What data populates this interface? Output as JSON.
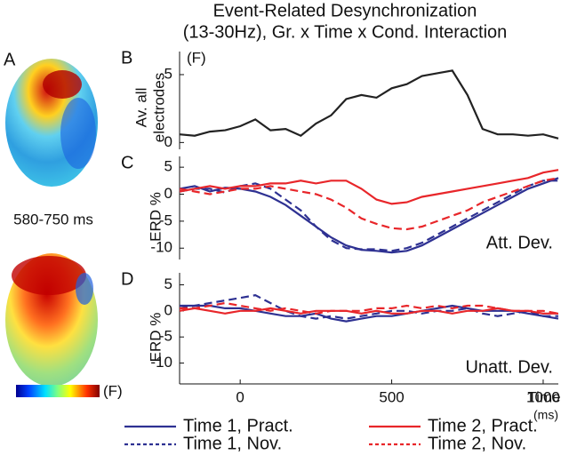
{
  "figure": {
    "title": [
      "Event-Related Desynchronization",
      "(13-30Hz), Gr. x Time x Cond. Interaction"
    ],
    "panel_label": "A",
    "time_window": "580-750 ms",
    "colorbar_label": "(F)"
  },
  "chart_data": [
    {
      "type": "line",
      "panel": "B",
      "annotation": "(F)",
      "y_label": [
        "Av. all",
        "electrodes"
      ],
      "x": [
        -200,
        -150,
        -100,
        -50,
        0,
        50,
        100,
        150,
        200,
        250,
        300,
        350,
        400,
        450,
        500,
        550,
        600,
        650,
        700,
        750,
        800,
        850,
        900,
        950,
        1000,
        1050
      ],
      "xlim": [
        -200,
        1050
      ],
      "ylim": [
        -0.5,
        6.7
      ],
      "yticks": [
        0,
        5
      ],
      "series": [
        {
          "color": "#222222",
          "style": "solid",
          "values": [
            0.6,
            0.5,
            0.8,
            0.9,
            1.2,
            1.7,
            0.9,
            1.0,
            0.5,
            1.4,
            2.0,
            3.2,
            3.5,
            3.3,
            4.0,
            4.3,
            4.9,
            5.1,
            5.3,
            3.5,
            1.0,
            0.6,
            0.6,
            0.5,
            0.6,
            0.3
          ]
        }
      ]
    },
    {
      "type": "line",
      "panel": "C",
      "annotation": "Att. Dev.",
      "y_label": "ERD %",
      "x": [
        -200,
        -150,
        -100,
        -50,
        0,
        50,
        100,
        150,
        200,
        250,
        300,
        350,
        400,
        450,
        500,
        550,
        600,
        650,
        700,
        750,
        800,
        850,
        900,
        950,
        1000,
        1050
      ],
      "xlim": [
        -200,
        1050
      ],
      "ylim": [
        -12.1,
        7
      ],
      "yticks": [
        5,
        0,
        -5,
        -10
      ],
      "series": [
        {
          "name": "Time 1, Pract.",
          "color": "#2e3192",
          "style": "solid",
          "values": [
            1,
            1.5,
            0.5,
            1.2,
            1,
            0.5,
            -0.5,
            -2,
            -4,
            -6,
            -8,
            -9.5,
            -10.3,
            -10.5,
            -10.8,
            -10.5,
            -9.5,
            -8,
            -6.5,
            -5,
            -3.5,
            -2,
            -0.5,
            1,
            2,
            3
          ]
        },
        {
          "name": "Time 1, Nov.",
          "color": "#2e3192",
          "style": "dashed",
          "values": [
            0.5,
            1,
            1,
            0.3,
            1.5,
            2,
            1,
            -1,
            -3,
            -6,
            -8.5,
            -10,
            -10.2,
            -10.2,
            -10.5,
            -10,
            -9,
            -7.5,
            -6,
            -4.5,
            -3,
            -1.5,
            0,
            1.5,
            2.5,
            2.5
          ]
        },
        {
          "name": "Time 2, Pract.",
          "color": "#e8262a",
          "style": "solid",
          "values": [
            0.5,
            1,
            1.5,
            1,
            1.5,
            1.5,
            2,
            2,
            2.5,
            2,
            2.5,
            2.5,
            1,
            -1,
            -1.8,
            -1.5,
            -0.5,
            0,
            0.5,
            1,
            1.5,
            2,
            2.5,
            3,
            4,
            4.5
          ]
        },
        {
          "name": "Time 2, Nov.",
          "color": "#e8262a",
          "style": "dashed",
          "values": [
            1,
            0.5,
            0,
            0.5,
            1,
            1,
            1.5,
            1,
            0.5,
            0,
            -1,
            -2.5,
            -4.5,
            -5.5,
            -6.3,
            -6.5,
            -6,
            -5,
            -4,
            -3,
            -1.5,
            -0.5,
            0.5,
            1.5,
            2.5,
            3
          ]
        }
      ]
    },
    {
      "type": "line",
      "panel": "D",
      "annotation": "Unatt. Dev.",
      "y_label": "ERD %",
      "x_label": [
        "Time",
        "(ms)"
      ],
      "x": [
        -200,
        -150,
        -100,
        -50,
        0,
        50,
        100,
        150,
        200,
        250,
        300,
        350,
        400,
        450,
        500,
        550,
        600,
        650,
        700,
        750,
        800,
        850,
        900,
        950,
        1000,
        1050
      ],
      "xlim": [
        -200,
        1050
      ],
      "xticks": [
        0,
        500,
        1000
      ],
      "ylim": [
        -14,
        7.3
      ],
      "yticks": [
        5,
        0,
        -5,
        -10
      ],
      "series": [
        {
          "name": "Time 1, Pract.",
          "color": "#2e3192",
          "style": "solid",
          "values": [
            1,
            1,
            1,
            0.5,
            0.5,
            0,
            -0.5,
            -1,
            -1,
            -0.5,
            -1.5,
            -2,
            -1.5,
            -1,
            -1,
            -0.5,
            0,
            0.5,
            1,
            0.5,
            0,
            0,
            0,
            -0.5,
            -1,
            -1.5
          ]
        },
        {
          "name": "Time 1, Nov.",
          "color": "#2e3192",
          "style": "dashed",
          "values": [
            0.5,
            1,
            1.5,
            2,
            2.5,
            3,
            1.5,
            0,
            -1,
            -1.5,
            -1,
            -1.5,
            -1,
            -0.5,
            0,
            0,
            -0.5,
            0,
            0,
            0.5,
            -0.5,
            -1,
            -0.5,
            0,
            -1,
            -1
          ]
        },
        {
          "name": "Time 2, Pract.",
          "color": "#e8262a",
          "style": "solid",
          "values": [
            0,
            0.5,
            0,
            -0.5,
            0,
            0,
            0.5,
            0,
            -0.5,
            0,
            0,
            0,
            -0.5,
            0,
            -0.5,
            -0.5,
            0,
            0,
            -0.5,
            0,
            0,
            0.5,
            0,
            0,
            -0.5,
            -0.5
          ]
        },
        {
          "name": "Time 2, Nov.",
          "color": "#e8262a",
          "style": "dashed",
          "values": [
            0.5,
            0.5,
            1,
            1.5,
            1,
            0.5,
            0,
            0.5,
            0,
            -0.5,
            0,
            0,
            0,
            0.5,
            0.5,
            1,
            0.5,
            1,
            0.5,
            1,
            1,
            0.5,
            0,
            0,
            0,
            -0.5
          ]
        }
      ]
    }
  ]
}
